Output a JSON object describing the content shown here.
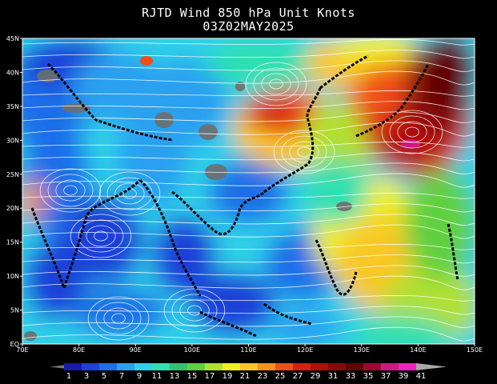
{
  "header": {
    "title": "RJTD Wind  850  hPa Unit Knots",
    "subtitle": "03Z02MAY2025"
  },
  "axes": {
    "lat_labels": [
      "45N",
      "40N",
      "35N",
      "30N",
      "25N",
      "20N",
      "15N",
      "10N",
      "5N",
      "EQ"
    ],
    "lon_labels": [
      "70E",
      "80E",
      "90E",
      "100E",
      "110E",
      "120E",
      "130E",
      "140E",
      "150E"
    ]
  },
  "colorbar": {
    "labels": [
      "1",
      "3",
      "5",
      "7",
      "9",
      "11",
      "13",
      "15",
      "17",
      "19",
      "21",
      "23",
      "25",
      "27",
      "29",
      "31",
      "33",
      "35",
      "37",
      "39",
      "41"
    ],
    "colors": [
      "#1a1aa8",
      "#1e3fd8",
      "#1f6ee8",
      "#2aa0f0",
      "#2ed0e8",
      "#2ee0b0",
      "#33c070",
      "#60d040",
      "#b0e030",
      "#f0f020",
      "#f8c828",
      "#f89020",
      "#f05018",
      "#d82010",
      "#b01008",
      "#880808",
      "#600404",
      "#a00830",
      "#d01880",
      "#f020c0",
      "#a8a8a8"
    ]
  },
  "colors": {
    "land_mask": "#6e6e6e",
    "coastline": "#000000",
    "streamline": "#ffffff"
  }
}
